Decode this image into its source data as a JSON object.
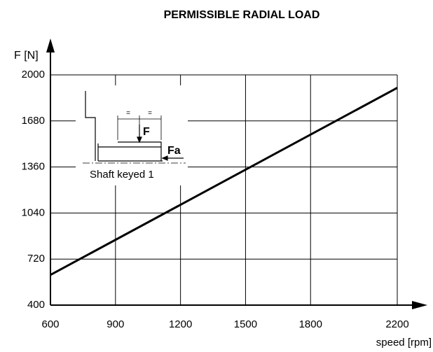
{
  "chart_data": {
    "type": "line",
    "title": "PERMISSIBLE RADIAL LOAD",
    "y_label": "F [N]",
    "x_label": "speed [rpm]",
    "x": [
      600,
      2200
    ],
    "series": [
      {
        "name": "Shaft keyed 1",
        "color": "#000000",
        "values": [
          610,
          1910
        ]
      }
    ],
    "xlim": [
      600,
      2200
    ],
    "xticks": [
      600,
      900,
      1200,
      1500,
      1800,
      2200
    ],
    "ylim": [
      400,
      2000
    ],
    "yticks": [
      400,
      720,
      1040,
      1360,
      1680,
      2000
    ],
    "grid": true,
    "annotations": [
      "F",
      "Fa",
      "=",
      "="
    ]
  }
}
